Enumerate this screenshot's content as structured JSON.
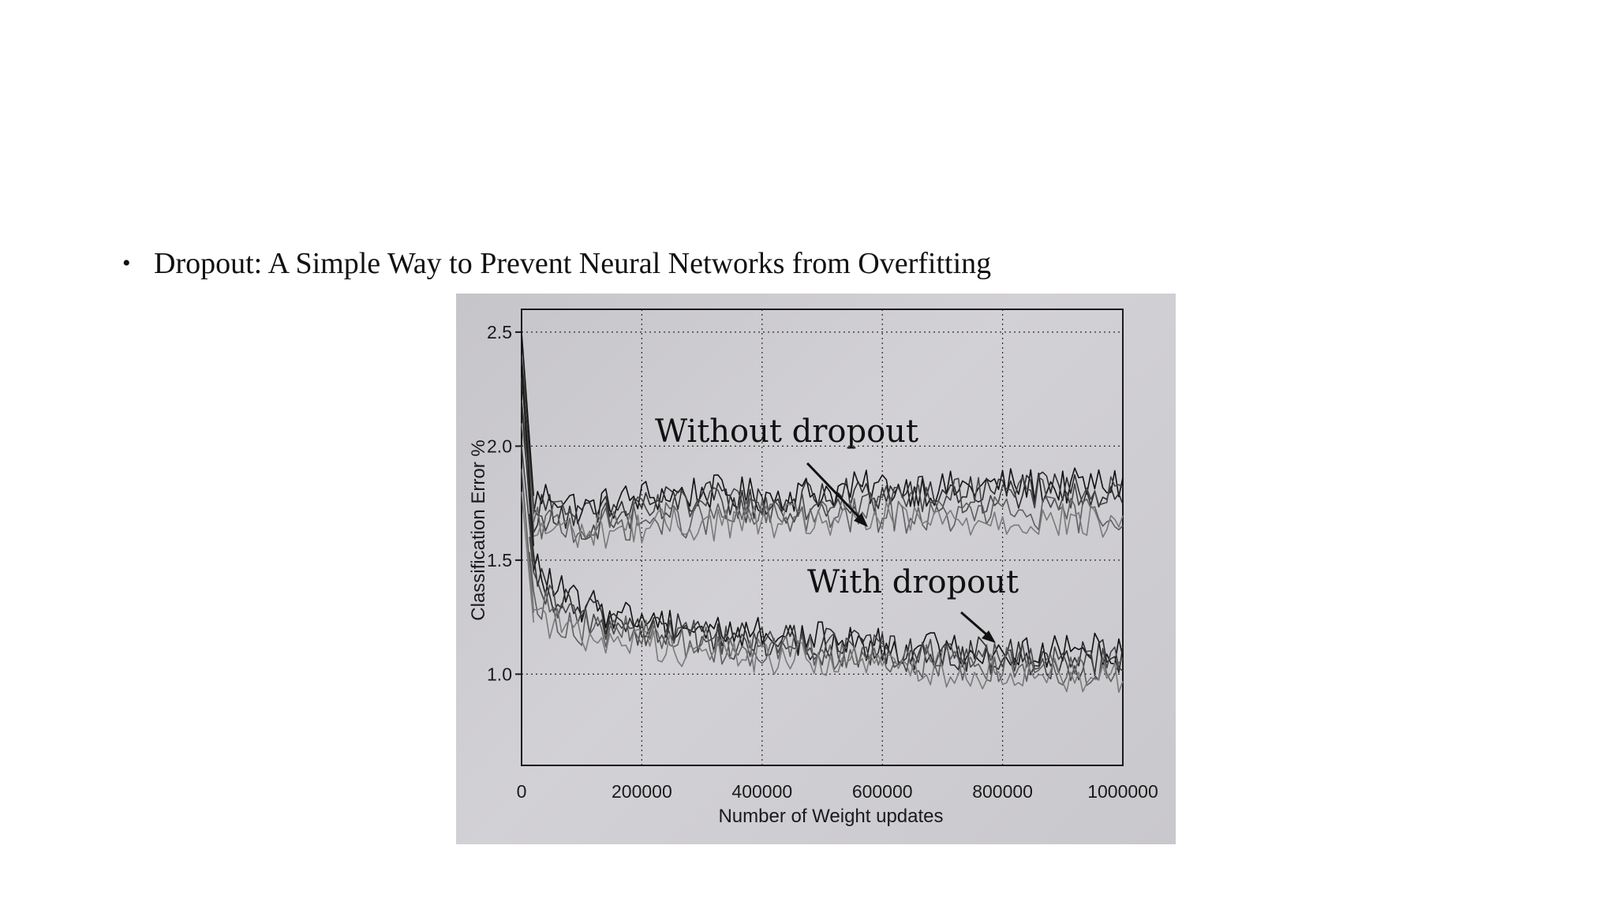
{
  "slide": {
    "bullet_text": "Dropout: A Simple Way to Prevent Neural Networks from Overfitting"
  },
  "colors": {
    "paper": "#cfced2",
    "ink": "#1a1a1a"
  },
  "chart_data": {
    "type": "line",
    "title": "",
    "xlabel": "Number of Weight updates",
    "ylabel": "Classification Error %",
    "xlim": [
      0,
      1000000
    ],
    "ylim": [
      0.6,
      2.6
    ],
    "xticks": [
      "0",
      "200000",
      "400000",
      "600000",
      "800000",
      "1000000"
    ],
    "yticks": [
      "1.0",
      "1.5",
      "2.0",
      "2.5"
    ],
    "grid": true,
    "annotations": [
      "Without dropout",
      "With dropout"
    ],
    "series": [
      {
        "group": "Without dropout",
        "x": [
          0,
          20000,
          50000,
          100000,
          200000,
          300000,
          400000,
          500000,
          600000,
          700000,
          800000,
          900000,
          1000000
        ],
        "y": [
          2.5,
          1.75,
          1.8,
          1.72,
          1.78,
          1.8,
          1.78,
          1.8,
          1.82,
          1.81,
          1.83,
          1.82,
          1.84
        ]
      },
      {
        "group": "Without dropout",
        "x": [
          0,
          20000,
          50000,
          100000,
          200000,
          300000,
          400000,
          500000,
          600000,
          700000,
          800000,
          900000,
          1000000
        ],
        "y": [
          2.4,
          1.7,
          1.74,
          1.68,
          1.75,
          1.77,
          1.75,
          1.78,
          1.79,
          1.8,
          1.8,
          1.81,
          1.8
        ]
      },
      {
        "group": "Without dropout",
        "x": [
          0,
          20000,
          50000,
          100000,
          200000,
          300000,
          400000,
          500000,
          600000,
          700000,
          800000,
          900000,
          1000000
        ],
        "y": [
          2.3,
          1.68,
          1.7,
          1.66,
          1.7,
          1.74,
          1.73,
          1.76,
          1.77,
          1.78,
          1.79,
          1.78,
          1.79
        ]
      },
      {
        "group": "Without dropout",
        "x": [
          0,
          20000,
          50000,
          100000,
          200000,
          300000,
          400000,
          500000,
          600000,
          700000,
          800000,
          900000,
          1000000
        ],
        "y": [
          2.2,
          1.65,
          1.66,
          1.64,
          1.67,
          1.68,
          1.69,
          1.69,
          1.7,
          1.69,
          1.71,
          1.7,
          1.7
        ]
      },
      {
        "group": "Without dropout",
        "x": [
          0,
          20000,
          50000,
          100000,
          200000,
          300000,
          400000,
          500000,
          600000,
          700000,
          800000,
          900000,
          1000000
        ],
        "y": [
          2.1,
          1.62,
          1.64,
          1.62,
          1.65,
          1.66,
          1.67,
          1.67,
          1.68,
          1.67,
          1.68,
          1.67,
          1.66
        ]
      },
      {
        "group": "With dropout",
        "x": [
          0,
          20000,
          50000,
          100000,
          200000,
          300000,
          400000,
          500000,
          600000,
          700000,
          800000,
          900000,
          1000000
        ],
        "y": [
          2.35,
          1.5,
          1.38,
          1.3,
          1.25,
          1.2,
          1.18,
          1.15,
          1.13,
          1.11,
          1.1,
          1.1,
          1.12
        ]
      },
      {
        "group": "With dropout",
        "x": [
          0,
          20000,
          50000,
          100000,
          200000,
          300000,
          400000,
          500000,
          600000,
          700000,
          800000,
          900000,
          1000000
        ],
        "y": [
          2.2,
          1.45,
          1.34,
          1.27,
          1.22,
          1.18,
          1.15,
          1.13,
          1.11,
          1.09,
          1.08,
          1.07,
          1.08
        ]
      },
      {
        "group": "With dropout",
        "x": [
          0,
          20000,
          50000,
          100000,
          200000,
          300000,
          400000,
          500000,
          600000,
          700000,
          800000,
          900000,
          1000000
        ],
        "y": [
          2.0,
          1.4,
          1.3,
          1.24,
          1.2,
          1.16,
          1.13,
          1.11,
          1.09,
          1.07,
          1.06,
          1.05,
          1.05
        ]
      },
      {
        "group": "With dropout",
        "x": [
          0,
          20000,
          50000,
          100000,
          200000,
          300000,
          400000,
          500000,
          600000,
          700000,
          800000,
          900000,
          1000000
        ],
        "y": [
          1.9,
          1.35,
          1.26,
          1.2,
          1.17,
          1.13,
          1.11,
          1.09,
          1.07,
          1.05,
          1.04,
          1.03,
          1.02
        ]
      },
      {
        "group": "With dropout",
        "x": [
          0,
          20000,
          50000,
          100000,
          200000,
          300000,
          400000,
          500000,
          600000,
          700000,
          800000,
          900000,
          1000000
        ],
        "y": [
          1.8,
          1.3,
          1.22,
          1.17,
          1.14,
          1.1,
          1.08,
          1.06,
          1.04,
          1.02,
          1.01,
          1.0,
          1.0
        ]
      }
    ]
  }
}
